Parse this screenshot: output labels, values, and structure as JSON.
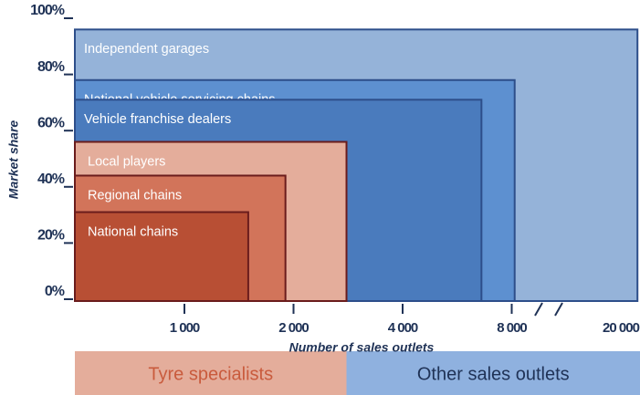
{
  "chart_data": {
    "type": "nested-area",
    "ylabel": "Market share",
    "xlabel": "Number of sales outlets",
    "ylim": [
      0,
      100
    ],
    "yticks": [
      {
        "value": 0,
        "label": "0%"
      },
      {
        "value": 20,
        "label": "20%"
      },
      {
        "value": 40,
        "label": "40%"
      },
      {
        "value": 60,
        "label": "60%"
      },
      {
        "value": 80,
        "label": "80%"
      },
      {
        "value": 100,
        "label": "100%"
      }
    ],
    "xscale": "log",
    "xticks": [
      {
        "value": 1000,
        "label": "1 000"
      },
      {
        "value": 2000,
        "label": "2 000"
      },
      {
        "value": 4000,
        "label": "4 000"
      },
      {
        "value": 8000,
        "label": "8 000"
      },
      {
        "value": 20000,
        "label": "20 000"
      }
    ],
    "series": [
      {
        "name": "Independent garages",
        "values": [
          96
        ],
        "outlets": [
          23000
        ],
        "color": "#95b3d9",
        "group": 1
      },
      {
        "name": "National vehicle servicing chains",
        "values": [
          78
        ],
        "outlets": [
          8200
        ],
        "color": "#5d90d0",
        "group": 1
      },
      {
        "name": "Vehicle franchise dealers",
        "values": [
          71
        ],
        "outlets": [
          6600
        ],
        "color": "#4a7bbd",
        "group": 1
      },
      {
        "name": "Local players",
        "values": [
          56
        ],
        "outlets": [
          2800
        ],
        "color": "#e4ad9b",
        "group": 0
      },
      {
        "name": "Regional chains",
        "values": [
          44
        ],
        "outlets": [
          1900
        ],
        "color": "#d2745a",
        "group": 0
      },
      {
        "name": "National chains",
        "values": [
          31
        ],
        "outlets": [
          1500
        ],
        "color": "#b84f34",
        "group": 0
      }
    ],
    "groups": [
      {
        "name": "Tyre specialists",
        "color": "#e4ad9b",
        "text_color": "#c95b3d"
      },
      {
        "name": "Other sales outlets",
        "color": "#8fb1df",
        "text_color": "#1f3256"
      }
    ]
  }
}
